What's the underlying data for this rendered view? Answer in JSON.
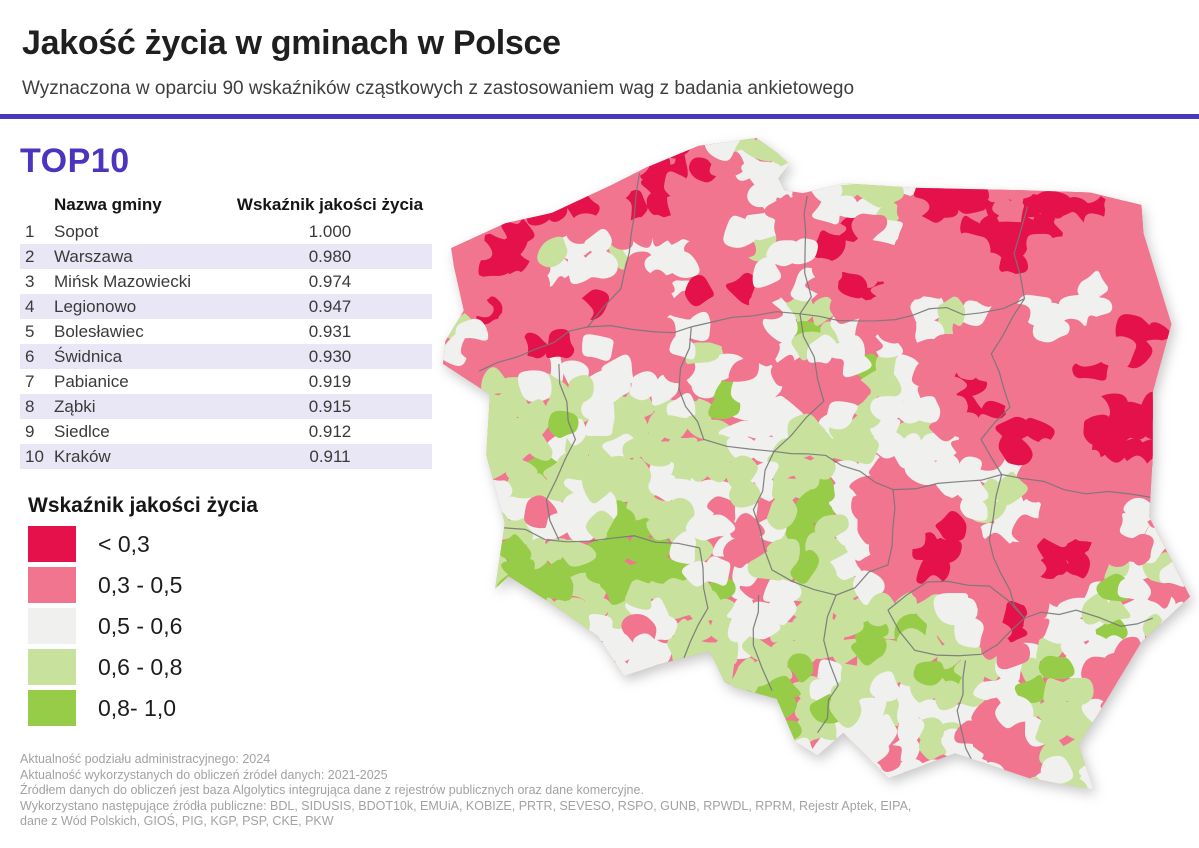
{
  "header": {
    "title": "Jakość życia w gminach w Polsce",
    "subtitle": "Wyznaczona w oparciu 90 wskaźników cząstkowych z zastosowaniem wag z badania ankietowego"
  },
  "colors": {
    "accent_purple": "#4b38c0",
    "heading_purple": "#4c34bf",
    "row_stripe": "#e9e7f6",
    "footer_text": "#a2a2a2",
    "region_border": "#777777"
  },
  "top10": {
    "heading": "TOP10",
    "columns": {
      "name": "Nazwa gminy",
      "value": "Wskaźnik jakości życia"
    },
    "rows": [
      {
        "rank": "1",
        "name": "Sopot",
        "value": "1.000"
      },
      {
        "rank": "2",
        "name": "Warszawa",
        "value": "0.980"
      },
      {
        "rank": "3",
        "name": "Mińsk Mazowiecki",
        "value": "0.974"
      },
      {
        "rank": "4",
        "name": "Legionowo",
        "value": "0.947"
      },
      {
        "rank": "5",
        "name": "Bolesławiec",
        "value": "0.931"
      },
      {
        "rank": "6",
        "name": "Świdnica",
        "value": "0.930"
      },
      {
        "rank": "7",
        "name": "Pabianice",
        "value": "0.919"
      },
      {
        "rank": "8",
        "name": "Ząbki",
        "value": "0.915"
      },
      {
        "rank": "9",
        "name": "Siedlce",
        "value": "0.912"
      },
      {
        "rank": "10",
        "name": "Kraków",
        "value": "0.911"
      }
    ]
  },
  "legend": {
    "title": "Wskaźnik jakości życia",
    "items": [
      {
        "label": "< 0,3",
        "color": "#e5114b"
      },
      {
        "label": "0,3 - 0,5",
        "color": "#f27590"
      },
      {
        "label": "0,5 - 0,6",
        "color": "#f0f0ee"
      },
      {
        "label": "0,6 - 0,8",
        "color": "#c8e29e"
      },
      {
        "label": "0,8- 1,0",
        "color": "#97cc49"
      }
    ]
  },
  "footer": {
    "lines": [
      "Aktualność podziału administracyjnego: 2024",
      "Aktualność wykorzystanych do obliczeń źródeł danych: 2021-2025",
      "Źródłem danych do obliczeń jest baza Algolytics integrująca dane z rejestrów publicznych oraz dane komercyjne.",
      "Wykorzystano następujące źródła publiczne: BDL, SIDUSIS, BDOT10k, EMUiA, KOBIZE, PRTR, SEVESO, RSPO, GUNB, RPWDL, RPRM, Rejestr Aptek, EIPA,",
      "dane z Wód Polskich, GIOŚ, PIG, KGP, PSP, CKE, PKW"
    ]
  },
  "chart_data": {
    "type": "table",
    "title": "TOP10",
    "columns": [
      "Nazwa gminy",
      "Wskaźnik jakości życia"
    ],
    "rows": [
      [
        "Sopot",
        1.0
      ],
      [
        "Warszawa",
        0.98
      ],
      [
        "Mińsk Mazowiecki",
        0.974
      ],
      [
        "Legionowo",
        0.947
      ],
      [
        "Bolesławiec",
        0.931
      ],
      [
        "Świdnica",
        0.93
      ],
      [
        "Pabianice",
        0.919
      ],
      [
        "Ząbki",
        0.915
      ],
      [
        "Siedlce",
        0.912
      ],
      [
        "Kraków",
        0.911
      ]
    ],
    "map_legend_classes": [
      "< 0,3",
      "0,3 - 0,5",
      "0,5 - 0,6",
      "0,6 - 0,8",
      "0,8- 1,0"
    ]
  }
}
